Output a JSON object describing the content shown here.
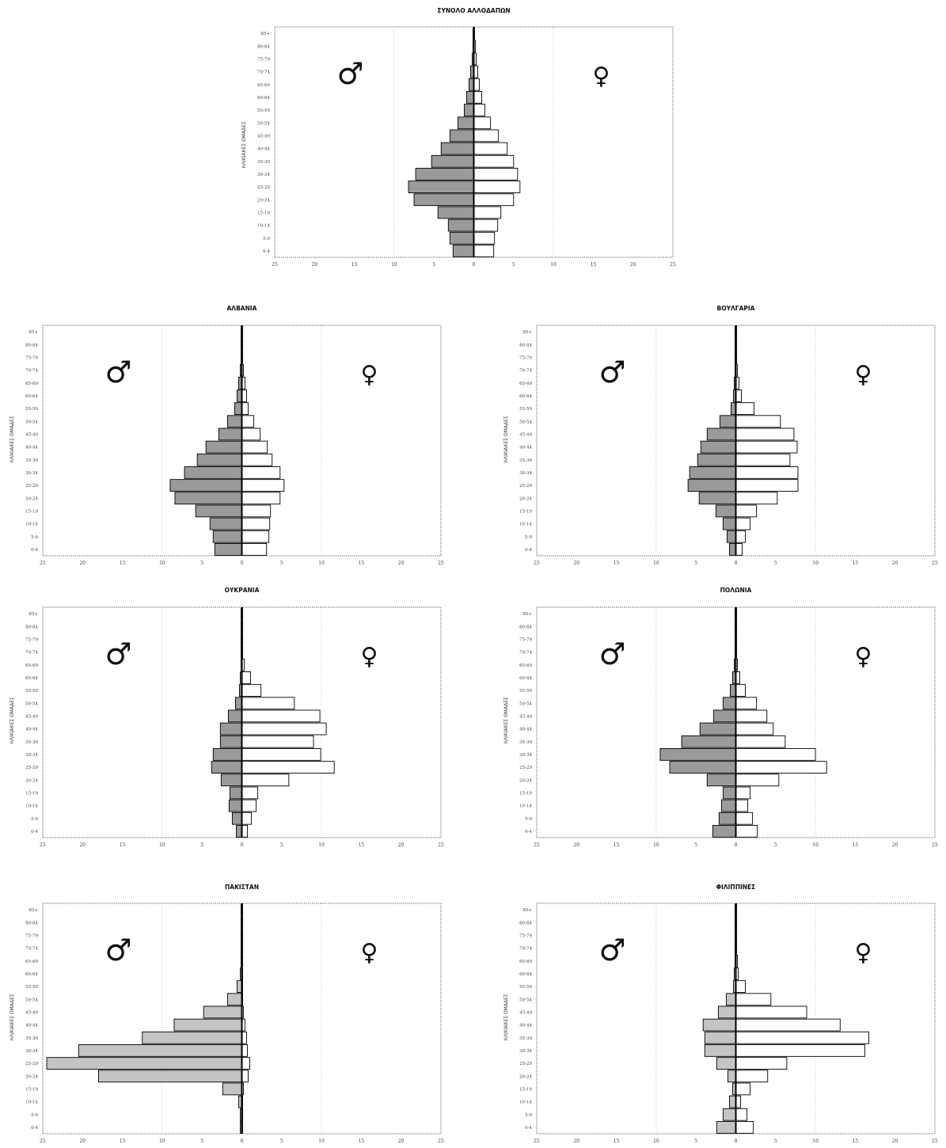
{
  "figure": {
    "ylabel": "ΗΛΙΚΙΑΚΕΣ ΟΜΑΔΕΣ"
  },
  "symbols": {
    "male": "♂",
    "female": "♀",
    "male_icon": "male-symbol-icon",
    "female_icon": "female-symbol-icon"
  },
  "colors": {
    "male_fill": "#9a9a9a",
    "male_fill_light": "#c4c4c4",
    "female_fill": "#ffffff",
    "axis": "#000000",
    "frame": "#777777",
    "dotted_grid": "#bbbbbb"
  },
  "chart_data": [
    {
      "type": "bar",
      "title": "ΣΥΝΟΛΟ ΑΛΛΟΔΑΠΩΝ",
      "ylabel": "ΗΛΙΚΙΑΚΕΣ ΟΜΑΔΕΣ",
      "categories": [
        "0-4",
        "5-9",
        "10-14",
        "15-19",
        "20-24",
        "25-29",
        "30-34",
        "35-39",
        "40-44",
        "45-49",
        "50-54",
        "55-59",
        "60-64",
        "65-69",
        "70-74",
        "75-79",
        "80-84",
        "85+"
      ],
      "xticks": [
        "25",
        "20",
        "15",
        "10",
        "5",
        "0",
        "5",
        "10",
        "15",
        "20",
        "25"
      ],
      "xlim": [
        -25,
        25
      ],
      "series": [
        {
          "name": "♂",
          "values": [
            2.6,
            3.0,
            3.2,
            4.5,
            7.5,
            8.2,
            7.3,
            5.3,
            4.1,
            3.0,
            2.0,
            1.2,
            0.9,
            0.6,
            0.4,
            0.2,
            0.1,
            0.1
          ]
        },
        {
          "name": "♀",
          "values": [
            2.5,
            2.6,
            3.0,
            3.4,
            5.0,
            5.8,
            5.5,
            5.0,
            4.2,
            3.1,
            2.1,
            1.4,
            1.0,
            0.7,
            0.5,
            0.3,
            0.2,
            0.1
          ]
        }
      ]
    },
    {
      "type": "bar",
      "title": "ΑΛΒΑΝΙΑ",
      "ylabel": "ΗΛΙΚΙΑΚΕΣ ΟΜΑΔΕΣ",
      "categories": [
        "0-4",
        "5-9",
        "10-14",
        "15-19",
        "20-24",
        "25-29",
        "30-34",
        "35-39",
        "40-44",
        "45-49",
        "50-54",
        "55-59",
        "60-64",
        "65-69",
        "70-74",
        "75-79",
        "80-84",
        "85+"
      ],
      "xticks": [
        "25",
        "20",
        "15",
        "10",
        "5",
        "0",
        "5",
        "10",
        "15",
        "20",
        "25"
      ],
      "xlim": [
        -25,
        25
      ],
      "series": [
        {
          "name": "♂",
          "values": [
            3.4,
            3.6,
            4.0,
            5.8,
            8.4,
            9.0,
            7.2,
            5.6,
            4.5,
            2.9,
            1.8,
            0.9,
            0.6,
            0.4,
            0.2,
            0.1,
            0.1,
            0.1
          ]
        },
        {
          "name": "♀",
          "values": [
            3.1,
            3.4,
            3.5,
            3.6,
            4.8,
            5.3,
            4.8,
            3.8,
            3.2,
            2.3,
            1.5,
            0.8,
            0.6,
            0.4,
            0.2,
            0.1,
            0.1,
            0.1
          ]
        }
      ]
    },
    {
      "type": "bar",
      "title": "ΒΟΥΛΓΑΡΙΑ",
      "ylabel": "ΗΛΙΚΙΑΚΕΣ ΟΜΑΔΕΣ",
      "categories": [
        "0-4",
        "5-9",
        "10-14",
        "15-19",
        "20-24",
        "25-29",
        "30-34",
        "35-39",
        "40-44",
        "45-49",
        "50-54",
        "55-59",
        "60-64",
        "65-69",
        "70-74",
        "75-79",
        "80-84",
        "85+"
      ],
      "xticks": [
        "25",
        "20",
        "15",
        "10",
        "5",
        "0",
        "5",
        "10",
        "15",
        "20",
        "25"
      ],
      "xlim": [
        -25,
        25
      ],
      "series": [
        {
          "name": "♂",
          "values": [
            0.8,
            1.1,
            1.6,
            2.5,
            4.6,
            6.0,
            5.8,
            4.8,
            4.4,
            3.6,
            2.0,
            0.6,
            0.3,
            0.2,
            0.1,
            0.1,
            0.1,
            0.1
          ]
        },
        {
          "name": "♀",
          "values": [
            0.8,
            1.2,
            1.8,
            2.6,
            5.2,
            7.8,
            7.8,
            6.8,
            7.7,
            7.3,
            5.6,
            2.3,
            0.7,
            0.4,
            0.2,
            0.1,
            0.1,
            0.1
          ]
        }
      ]
    },
    {
      "type": "bar",
      "title": "ΟΥΚΡΑΝΙΑ",
      "ylabel": "ΗΛΙΚΙΑΚΕΣ ΟΜΑΔΕΣ",
      "categories": [
        "0-4",
        "5-9",
        "10-14",
        "15-19",
        "20-24",
        "25-29",
        "30-34",
        "35-39",
        "40-44",
        "45-49",
        "50-54",
        "55-59",
        "60-64",
        "65-69",
        "70-74",
        "75-79",
        "80-84",
        "85+"
      ],
      "xticks": [
        "25",
        "20",
        "15",
        "10",
        "5",
        "0",
        "5",
        "10",
        "15",
        "20",
        "25"
      ],
      "xlim": [
        -25,
        25
      ],
      "series": [
        {
          "name": "♂",
          "values": [
            0.7,
            1.2,
            1.6,
            1.5,
            2.6,
            3.8,
            3.6,
            2.7,
            2.7,
            1.7,
            0.8,
            0.3,
            0.2,
            0.1,
            0.1,
            0.1,
            0.1,
            0.1
          ]
        },
        {
          "name": "♀",
          "values": [
            0.7,
            1.2,
            1.8,
            2.0,
            5.9,
            11.6,
            9.9,
            9.0,
            10.6,
            9.8,
            6.6,
            2.4,
            1.1,
            0.3,
            0.1,
            0.1,
            0.1,
            0.1
          ]
        }
      ]
    },
    {
      "type": "bar",
      "title": "ΠΟΛΩΝΙΑ",
      "ylabel": "ΗΛΙΚΙΑΚΕΣ ΟΜΑΔΕΣ",
      "categories": [
        "0-4",
        "5-9",
        "10-14",
        "15-19",
        "20-24",
        "25-29",
        "30-34",
        "35-39",
        "40-44",
        "45-49",
        "50-54",
        "55-59",
        "60-64",
        "65-69",
        "70-74",
        "75-79",
        "80-84",
        "85+"
      ],
      "xticks": [
        "25",
        "20",
        "15",
        "10",
        "5",
        "0",
        "5",
        "10",
        "15",
        "20",
        "25"
      ],
      "xlim": [
        -25,
        25
      ],
      "series": [
        {
          "name": "♂",
          "values": [
            2.9,
            2.1,
            1.8,
            1.6,
            3.6,
            8.3,
            9.5,
            6.8,
            4.5,
            2.8,
            1.6,
            0.7,
            0.4,
            0.2,
            0.1,
            0.1,
            0.1,
            0.1
          ]
        },
        {
          "name": "♀",
          "values": [
            2.7,
            2.1,
            1.5,
            1.8,
            5.4,
            11.4,
            10.0,
            6.2,
            4.7,
            3.9,
            2.6,
            1.2,
            0.5,
            0.2,
            0.1,
            0.1,
            0.1,
            0.1
          ]
        }
      ]
    },
    {
      "type": "bar",
      "title": "ΠΑΚΙΣΤΑΝ",
      "ylabel": "ΗΛΙΚΙΑΚΕΣ ΟΜΑΔΕΣ",
      "categories": [
        "0-4",
        "5-9",
        "10-14",
        "15-19",
        "20-24",
        "25-29",
        "30-34",
        "35-39",
        "40-44",
        "45-49",
        "50-54",
        "55-59",
        "60-64",
        "65-69",
        "70-74",
        "75-79",
        "80-84",
        "85+"
      ],
      "xticks": [
        "25",
        "20",
        "15",
        "10",
        "5",
        "0",
        "5",
        "10",
        "15",
        "20",
        "25"
      ],
      "xlim": [
        -25,
        25
      ],
      "series": [
        {
          "name": "♂",
          "values": [
            0.2,
            0.2,
            0.4,
            2.4,
            18.0,
            24.5,
            20.5,
            12.5,
            8.5,
            4.8,
            1.8,
            0.6,
            0.2,
            0.1,
            0.1,
            0.1,
            0.1,
            0.1
          ]
        },
        {
          "name": "♀",
          "values": [
            0.1,
            0.1,
            0.1,
            0.2,
            0.8,
            1.0,
            0.7,
            0.6,
            0.4,
            0.2,
            0.1,
            0.1,
            0.1,
            0.1,
            0.1,
            0.1,
            0.1,
            0.1
          ]
        }
      ]
    },
    {
      "type": "bar",
      "title": "ΦΙΛΙΠΠΙΝΕΣ",
      "ylabel": "ΗΛΙΚΙΑΚΕΣ ΟΜΑΔΕΣ",
      "categories": [
        "0-4",
        "5-9",
        "10-14",
        "15-19",
        "20-24",
        "25-29",
        "30-34",
        "35-39",
        "40-44",
        "45-49",
        "50-54",
        "55-59",
        "60-64",
        "65-69",
        "70-74",
        "75-79",
        "80-84",
        "85+"
      ],
      "xticks": [
        "25",
        "20",
        "15",
        "10",
        "5",
        "0",
        "5",
        "10",
        "15",
        "20",
        "25"
      ],
      "xlim": [
        -25,
        25
      ],
      "series": [
        {
          "name": "♂",
          "values": [
            2.4,
            1.6,
            0.8,
            0.4,
            1.0,
            2.4,
            3.9,
            3.9,
            4.1,
            2.2,
            1.2,
            0.3,
            0.2,
            0.1,
            0.1,
            0.1,
            0.1,
            0.1
          ]
        },
        {
          "name": "♀",
          "values": [
            2.2,
            1.4,
            0.6,
            1.8,
            4.0,
            6.4,
            16.2,
            16.7,
            13.1,
            8.9,
            4.4,
            1.2,
            0.3,
            0.2,
            0.1,
            0.1,
            0.1,
            0.1
          ]
        }
      ]
    }
  ]
}
